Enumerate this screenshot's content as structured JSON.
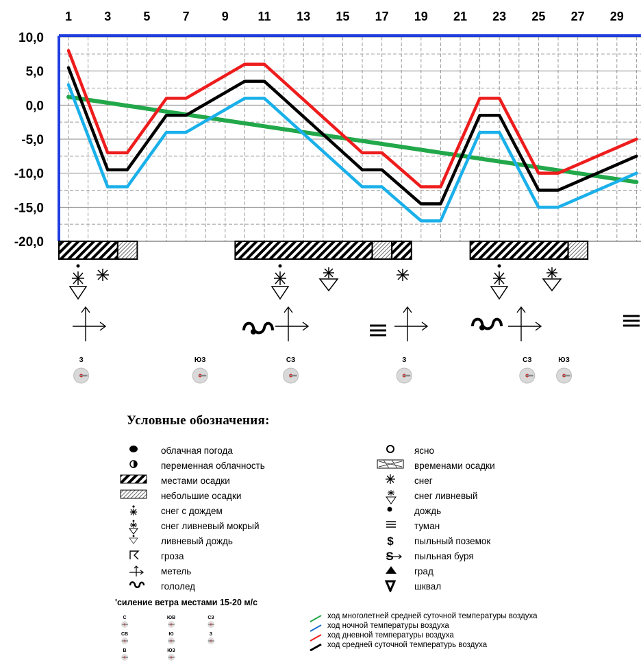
{
  "chart_data": {
    "type": "line",
    "x_ticks": [
      "1",
      "3",
      "5",
      "7",
      "9",
      "11",
      "13",
      "15",
      "17",
      "19",
      "21",
      "23",
      "25",
      "27",
      "29"
    ],
    "y_ticks": [
      "10,0",
      "5,0",
      "0,0",
      "-5,0",
      "-10,0",
      "-15,0",
      "-20,0"
    ],
    "ylim": [
      -20,
      10
    ],
    "xlim": [
      1,
      30
    ],
    "grid": true,
    "series": [
      {
        "name": "ход многолетней средней суточной температуры воздуха",
        "color": "#22a84a",
        "x": [
          1,
          30
        ],
        "y": [
          1.2,
          -11.3
        ]
      },
      {
        "name": "ход ночной температуры воздуха",
        "color": "#1ab0ea",
        "x": [
          1,
          3,
          4,
          6,
          7,
          10,
          11,
          16,
          17,
          19,
          20,
          22,
          23,
          25,
          26,
          30
        ],
        "y": [
          3,
          -12,
          -12,
          -4,
          -4,
          1,
          1,
          -12,
          -12,
          -17,
          -17,
          -4,
          -4,
          -15,
          -15,
          -10
        ]
      },
      {
        "name": "ход дневной температуры воздуха",
        "color": "#ee1c1c",
        "x": [
          1,
          3,
          4,
          6,
          7,
          10,
          11,
          16,
          17,
          19,
          20,
          22,
          23,
          25,
          26,
          30
        ],
        "y": [
          8,
          -7,
          -7,
          1,
          1,
          6,
          6,
          -7,
          -7,
          -12,
          -12,
          1,
          1,
          -10,
          -10,
          -5
        ]
      },
      {
        "name": "ход средней суточной температуры воздуха",
        "color": "#000000",
        "x": [
          1,
          3,
          4,
          6,
          7,
          10,
          11,
          16,
          17,
          19,
          20,
          22,
          23,
          25,
          26,
          30
        ],
        "y": [
          5.5,
          -9.5,
          -9.5,
          -1.5,
          -1.5,
          3.5,
          3.5,
          -9.5,
          -9.5,
          -14.5,
          -14.5,
          -1.5,
          -1.5,
          -12.5,
          -12.5,
          -7.5
        ]
      }
    ],
    "precip_bars": [
      {
        "from": 1,
        "to": 4,
        "kind": "местами осадки"
      },
      {
        "from": 4,
        "to": 5,
        "kind": "небольшие осадки"
      },
      {
        "from": 10,
        "to": 17,
        "kind": "местами осадки"
      },
      {
        "from": 17,
        "to": 18,
        "kind": "небольшие осадки"
      },
      {
        "from": 18,
        "to": 19,
        "kind": "местами осадки"
      },
      {
        "from": 22,
        "to": 27,
        "kind": "местами осадки"
      },
      {
        "from": 27,
        "to": 28,
        "kind": "небольшие осадки"
      }
    ],
    "wind_labels": [
      {
        "day": 2,
        "dir": "З"
      },
      {
        "day": 8,
        "dir": "ЮЗ"
      },
      {
        "day": 12,
        "dir": "СЗ"
      },
      {
        "day": 18,
        "dir": "З"
      },
      {
        "day": 24,
        "dir": "СЗ"
      },
      {
        "day": 27,
        "dir": "ЮЗ"
      }
    ]
  },
  "legend": {
    "title": "Условные обозначения:",
    "left_items": [
      {
        "icon": "cloudy-icon",
        "label": "облачная погода"
      },
      {
        "icon": "partly-cloudy-icon",
        "label": "переменная облачность"
      },
      {
        "icon": "local-precip-icon",
        "label": "местами осадки"
      },
      {
        "icon": "light-precip-icon",
        "label": "небольшие осадки"
      },
      {
        "icon": "sleet-icon",
        "label": "снег с дождем"
      },
      {
        "icon": "wet-snow-shower-icon",
        "label": "снег ливневый мокрый"
      },
      {
        "icon": "rain-shower-icon",
        "label": "ливневый дождь"
      },
      {
        "icon": "thunderstorm-icon",
        "label": "гроза"
      },
      {
        "icon": "blizzard-icon",
        "label": "метель"
      },
      {
        "icon": "glaze-ice-icon",
        "label": "гололед"
      }
    ],
    "right_items": [
      {
        "icon": "clear-icon",
        "label": "ясно"
      },
      {
        "icon": "intermittent-precip-icon",
        "label": "временами осадки"
      },
      {
        "icon": "snow-icon",
        "label": "снег"
      },
      {
        "icon": "snow-shower-icon",
        "label": "снег ливневый"
      },
      {
        "icon": "rain-icon",
        "label": "дождь"
      },
      {
        "icon": "fog-icon",
        "label": "туман"
      },
      {
        "icon": "dust-drift-icon",
        "label": "пыльный поземок"
      },
      {
        "icon": "dust-storm-icon",
        "label": "пыльная буря"
      },
      {
        "icon": "hail-icon",
        "label": "град"
      },
      {
        "icon": "squall-icon",
        "label": "шквал"
      }
    ],
    "wind_note": "'силение ветра местами 15-20 м/с",
    "wind_dirs": [
      "С",
      "ЮВ",
      "СЗ",
      "СВ",
      "Ю",
      "З",
      "В",
      "ЮЗ"
    ],
    "line_items": [
      {
        "color": "#22a84a",
        "label": "ход многолетней средней суточной температуры воздуха"
      },
      {
        "color": "#1a6fd0",
        "label": "ход ночной температуры воздуха"
      },
      {
        "color": "#ee1c1c",
        "label": "ход дневной температуры воздуха"
      },
      {
        "color": "#000000",
        "label": "ход средней суточной температурь воздуха"
      }
    ]
  }
}
